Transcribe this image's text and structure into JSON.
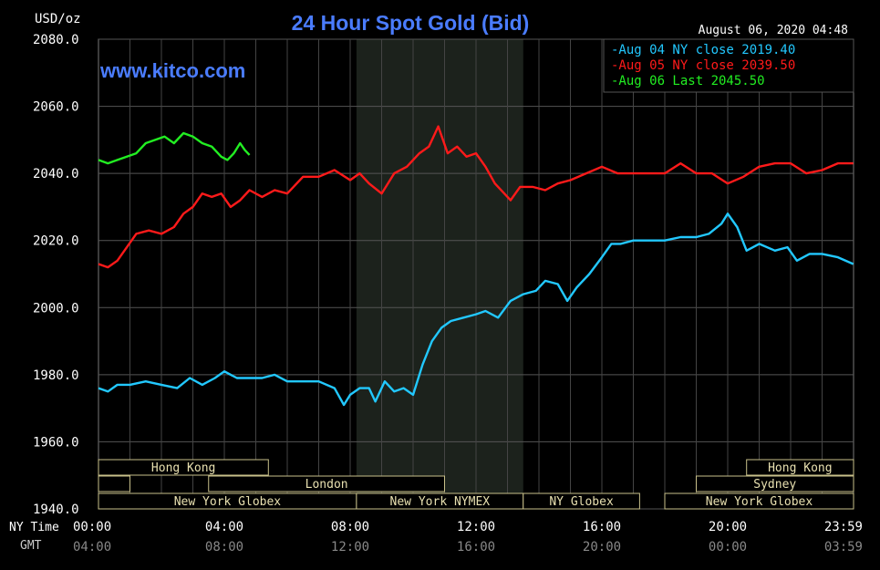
{
  "header": {
    "title": "24 Hour Spot Gold (Bid)",
    "unit": "USD/oz",
    "timestamp": "August 06, 2020 04:48",
    "website": "www.kitco.com"
  },
  "legend": [
    {
      "label": "Aug 04 NY close 2019.40",
      "color": "#22c8ff"
    },
    {
      "label": "Aug 05 NY close 2039.50",
      "color": "#ff1a1a"
    },
    {
      "label": "Aug 06 Last 2045.50",
      "color": "#22ee22"
    }
  ],
  "time_axis": {
    "ny_label": "NY Time",
    "gmt_label": "GMT",
    "ny_ticks": [
      "00:00",
      "04:00",
      "08:00",
      "12:00",
      "16:00",
      "20:00",
      "23:59"
    ],
    "gmt_ticks": [
      "04:00",
      "08:00",
      "12:00",
      "16:00",
      "20:00",
      "00:00",
      "03:59"
    ]
  },
  "sessions": [
    {
      "label": "Hong Kong",
      "start": 0,
      "end": 5.4,
      "row": 0
    },
    {
      "label": "Hong Kong",
      "start": 20.6,
      "end": 24,
      "row": 0
    },
    {
      "label": "",
      "start": 0,
      "end": 1.0,
      "row": 1
    },
    {
      "label": "London",
      "start": 3.5,
      "end": 11.0,
      "row": 1
    },
    {
      "label": "Sydney",
      "start": 19.0,
      "end": 24,
      "row": 1
    },
    {
      "label": "New York Globex",
      "start": 0,
      "end": 8.2,
      "row": 2
    },
    {
      "label": "New York NYMEX",
      "start": 8.2,
      "end": 13.5,
      "row": 2
    },
    {
      "label": "NY Globex",
      "start": 13.5,
      "end": 17.2,
      "row": 2
    },
    {
      "label": "New York Globex",
      "start": 18.0,
      "end": 24,
      "row": 2
    }
  ],
  "chart_data": {
    "type": "line",
    "title": "24 Hour Spot Gold (Bid)",
    "ylabel": "USD/oz",
    "xlabel": "NY Time",
    "xlim": [
      0,
      24
    ],
    "ylim": [
      1940,
      2080
    ],
    "yticks": [
      1940,
      1960,
      1980,
      2000,
      2020,
      2040,
      2060,
      2080
    ],
    "xticks": [
      0,
      4,
      8,
      12,
      16,
      20,
      24
    ],
    "grid": true,
    "highlight_range": [
      8.2,
      13.5
    ],
    "legend_position": "top-right",
    "series": [
      {
        "name": "Aug 04 NY close 2019.40",
        "color": "#22c8ff",
        "x": [
          0,
          0.3,
          0.6,
          1.0,
          1.5,
          2.0,
          2.5,
          2.9,
          3.3,
          3.7,
          4.0,
          4.4,
          4.8,
          5.2,
          5.6,
          6.0,
          6.5,
          7.0,
          7.5,
          7.8,
          8.0,
          8.3,
          8.6,
          8.8,
          9.1,
          9.4,
          9.7,
          10.0,
          10.3,
          10.6,
          10.9,
          11.2,
          11.6,
          12.0,
          12.3,
          12.7,
          13.1,
          13.5,
          13.9,
          14.2,
          14.6,
          14.9,
          15.2,
          15.6,
          16.0,
          16.3,
          16.6,
          17.0,
          17.6,
          18.0,
          18.5,
          19.0,
          19.4,
          19.8,
          20.0,
          20.3,
          20.6,
          21.0,
          21.5,
          21.9,
          22.2,
          22.6,
          23.0,
          23.5,
          23.99
        ],
        "y": [
          1976,
          1975,
          1977,
          1977,
          1978,
          1977,
          1976,
          1979,
          1977,
          1979,
          1981,
          1979,
          1979,
          1979,
          1980,
          1978,
          1978,
          1978,
          1976,
          1971,
          1974,
          1976,
          1976,
          1972,
          1978,
          1975,
          1976,
          1974,
          1983,
          1990,
          1994,
          1996,
          1997,
          1998,
          1999,
          1997,
          2002,
          2004,
          2005,
          2008,
          2007,
          2002,
          2006,
          2010,
          2015,
          2019,
          2019,
          2020,
          2020,
          2020,
          2021,
          2021,
          2022,
          2025,
          2028,
          2024,
          2017,
          2019,
          2017,
          2018,
          2014,
          2016,
          2016,
          2015,
          2013
        ]
      },
      {
        "name": "Aug 05 NY close 2039.50",
        "color": "#ff1a1a",
        "x": [
          0,
          0.3,
          0.6,
          0.9,
          1.2,
          1.6,
          2.0,
          2.4,
          2.7,
          3.0,
          3.3,
          3.6,
          3.9,
          4.2,
          4.5,
          4.8,
          5.2,
          5.6,
          6.0,
          6.5,
          7.0,
          7.5,
          8.0,
          8.3,
          8.6,
          9.0,
          9.4,
          9.8,
          10.2,
          10.5,
          10.8,
          11.1,
          11.4,
          11.7,
          12.0,
          12.3,
          12.6,
          12.9,
          13.1,
          13.4,
          13.8,
          14.2,
          14.6,
          15.0,
          15.5,
          16.0,
          16.5,
          17.0,
          17.5,
          18.0,
          18.5,
          19.0,
          19.5,
          20.0,
          20.5,
          21.0,
          21.5,
          22.0,
          22.5,
          23.0,
          23.5,
          23.99
        ],
        "y": [
          2013,
          2012,
          2014,
          2018,
          2022,
          2023,
          2022,
          2024,
          2028,
          2030,
          2034,
          2033,
          2034,
          2030,
          2032,
          2035,
          2033,
          2035,
          2034,
          2039,
          2039,
          2041,
          2038,
          2040,
          2037,
          2034,
          2040,
          2042,
          2046,
          2048,
          2054,
          2046,
          2048,
          2045,
          2046,
          2042,
          2037,
          2034,
          2032,
          2036,
          2036,
          2035,
          2037,
          2038,
          2040,
          2042,
          2040,
          2040,
          2040,
          2040,
          2043,
          2040,
          2040,
          2037,
          2039,
          2042,
          2043,
          2043,
          2040,
          2041,
          2043,
          2043
        ]
      },
      {
        "name": "Aug 06 Last 2045.50",
        "color": "#22ee22",
        "x": [
          0,
          0.3,
          0.6,
          0.9,
          1.2,
          1.5,
          1.8,
          2.1,
          2.4,
          2.7,
          3.0,
          3.3,
          3.6,
          3.9,
          4.1,
          4.3,
          4.5,
          4.65,
          4.8
        ],
        "y": [
          2044,
          2043,
          2044,
          2045,
          2046,
          2049,
          2050,
          2051,
          2049,
          2052,
          2051,
          2049,
          2048,
          2045,
          2044,
          2046,
          2049,
          2047,
          2045.5
        ]
      }
    ]
  }
}
